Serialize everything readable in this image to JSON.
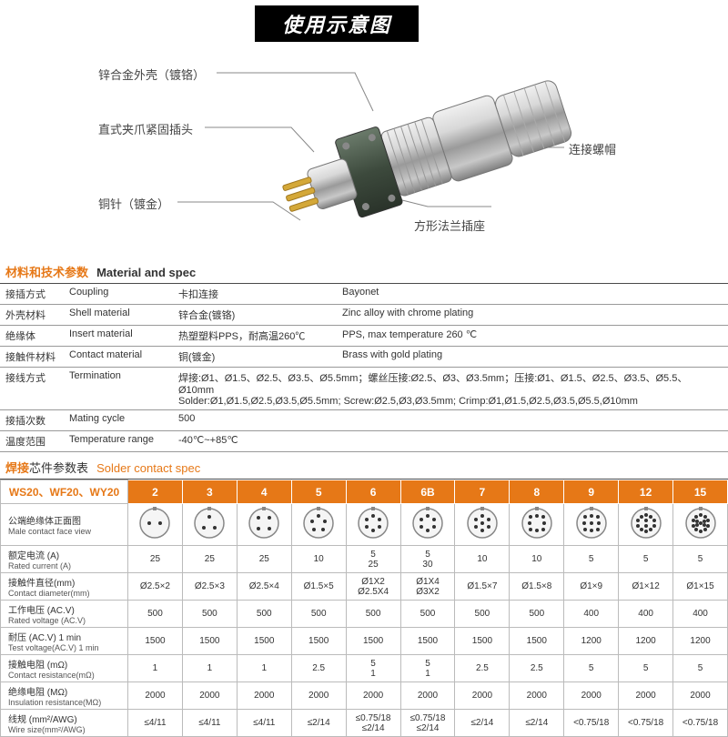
{
  "banner": "使用示意图",
  "callouts": {
    "shell": "锌合金外壳（镀铬）",
    "plug": "直式夹爪紧固插头",
    "pin": "铜针（镀金）",
    "nut": "连接螺帽",
    "flange": "方形法兰插座"
  },
  "section1": {
    "cn": "材料和技术参数",
    "en": "Material and spec"
  },
  "spec_rows": [
    {
      "a": "接插方式",
      "b": "Coupling",
      "c": "卡扣连接",
      "d": "Bayonet"
    },
    {
      "a": "外壳材料",
      "b": "Shell material",
      "c": "锌合金(镀铬)",
      "d": "Zinc alloy with chrome plating"
    },
    {
      "a": "绝缘体",
      "b": "Insert material",
      "c": "热塑塑料PPS，耐高温260℃",
      "d": "PPS, max temperature 260 ℃"
    },
    {
      "a": "接触件材料",
      "b": "Contact material",
      "c": "铜(镀金)",
      "d": "Brass with gold plating"
    },
    {
      "a": "接线方式",
      "b": "Termination",
      "c": "焊接:Ø1、Ø1.5、Ø2.5、Ø3.5、Ø5.5mm；螺丝压接:Ø2.5、Ø3、Ø3.5mm；压接:Ø1、Ø1.5、Ø2.5、Ø3.5、Ø5.5、Ø10mm\nSolder:Ø1,Ø1.5,Ø2.5,Ø3.5,Ø5.5mm;  Screw:Ø2.5,Ø3,Ø3.5mm;    Crimp:Ø1,Ø1.5,Ø2.5,Ø3.5,Ø5.5,Ø10mm",
      "d": ""
    },
    {
      "a": "接插次数",
      "b": "Mating cycle",
      "c": "500",
      "d": ""
    },
    {
      "a": "温度范围",
      "b": "Temperature range",
      "c": "-40℃~+85℃",
      "d": ""
    }
  ],
  "section2": {
    "cn": "焊接",
    "cn2": "芯件参数表",
    "en": "Solder contact spec"
  },
  "solder": {
    "model": "WS20、WF20、WY20",
    "headers": [
      "2",
      "3",
      "4",
      "5",
      "6",
      "6B",
      "7",
      "8",
      "9",
      "12",
      "15"
    ],
    "pins": [
      2,
      3,
      4,
      5,
      6,
      6,
      7,
      8,
      9,
      12,
      15
    ],
    "row_labels": [
      {
        "cn": "公端绝缘体正面图",
        "en": "Male contact face view"
      },
      {
        "cn": "额定电流 (A)",
        "en": "Rated current (A)"
      },
      {
        "cn": "接触件直径(mm)",
        "en": "Contact diameter(mm)"
      },
      {
        "cn": "工作电压 (AC.V)",
        "en": "Rated voltage (AC.V)"
      },
      {
        "cn": "耐压 (AC.V) 1 min",
        "en": "Test voltage(AC.V) 1 min"
      },
      {
        "cn": "接触电阻 (mΩ)",
        "en": "Contact resistance(mΩ)"
      },
      {
        "cn": "绝缘电阻 (MΩ)",
        "en": "Insulation resistance(MΩ)"
      },
      {
        "cn": "线规 (mm²/AWG)",
        "en": "Wire size(mm²/AWG)"
      }
    ],
    "rows": [
      [
        "25",
        "25",
        "25",
        "10",
        "5\n25",
        "5\n30",
        "10",
        "10",
        "5",
        "5",
        "5"
      ],
      [
        "Ø2.5×2",
        "Ø2.5×3",
        "Ø2.5×4",
        "Ø1.5×5",
        "Ø1X2\nØ2.5X4",
        "Ø1X4\nØ3X2",
        "Ø1.5×7",
        "Ø1.5×8",
        "Ø1×9",
        "Ø1×12",
        "Ø1×15"
      ],
      [
        "500",
        "500",
        "500",
        "500",
        "500",
        "500",
        "500",
        "500",
        "400",
        "400",
        "400"
      ],
      [
        "1500",
        "1500",
        "1500",
        "1500",
        "1500",
        "1500",
        "1500",
        "1500",
        "1200",
        "1200",
        "1200"
      ],
      [
        "1",
        "1",
        "1",
        "2.5",
        "5\n1",
        "5\n1",
        "2.5",
        "2.5",
        "5",
        "5",
        "5"
      ],
      [
        "2000",
        "2000",
        "2000",
        "2000",
        "2000",
        "2000",
        "2000",
        "2000",
        "2000",
        "2000",
        "2000"
      ],
      [
        "≤4/11",
        "≤4/11",
        "≤4/11",
        "≤2/14",
        "≤0.75/18\n≤2/14",
        "≤0.75/18\n≤2/14",
        "≤2/14",
        "≤2/14",
        "<0.75/18",
        "<0.75/18",
        "<0.75/18"
      ]
    ]
  },
  "colors": {
    "accent": "#e67817",
    "border": "#bbb",
    "headline": "#000"
  }
}
